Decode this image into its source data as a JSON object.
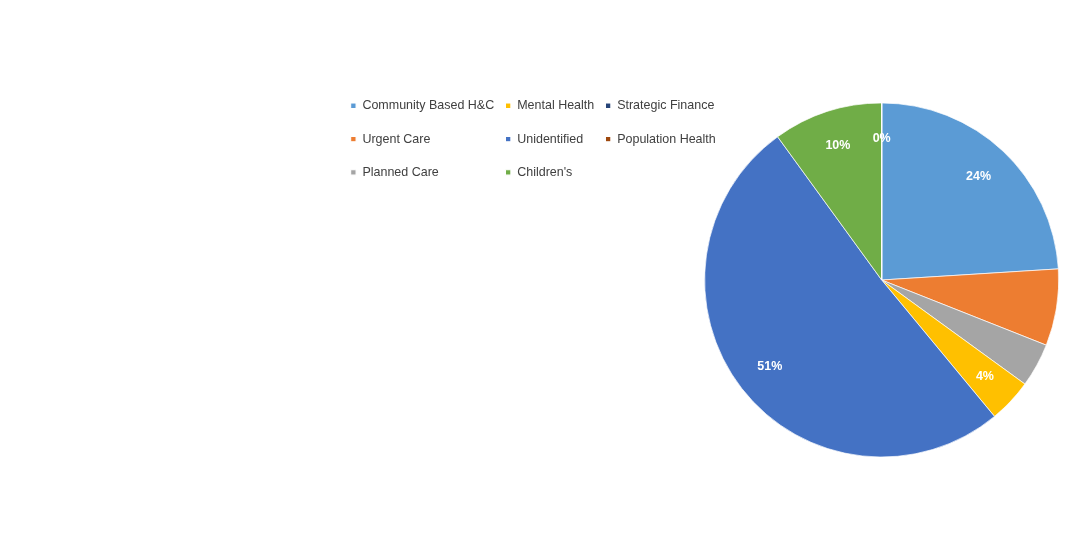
{
  "chart_data": {
    "type": "pie",
    "categories": [
      "Community Based H&C",
      "Urgent Care",
      "Planned Care",
      "Mental Health",
      "Unidentified",
      "Children's",
      "Strategic Finance",
      "Population Health"
    ],
    "values": [
      24,
      7,
      4,
      4,
      51,
      10,
      0,
      0
    ],
    "colors": [
      "#5b9bd5",
      "#ed7d31",
      "#a5a5a5",
      "#ffc000",
      "#4472c4",
      "#70ad47",
      "#264478",
      "#9e480e"
    ],
    "value_labels": [
      "24%",
      null,
      null,
      "4%",
      "51%",
      "10%",
      "0%",
      null
    ],
    "legend": "top left"
  }
}
